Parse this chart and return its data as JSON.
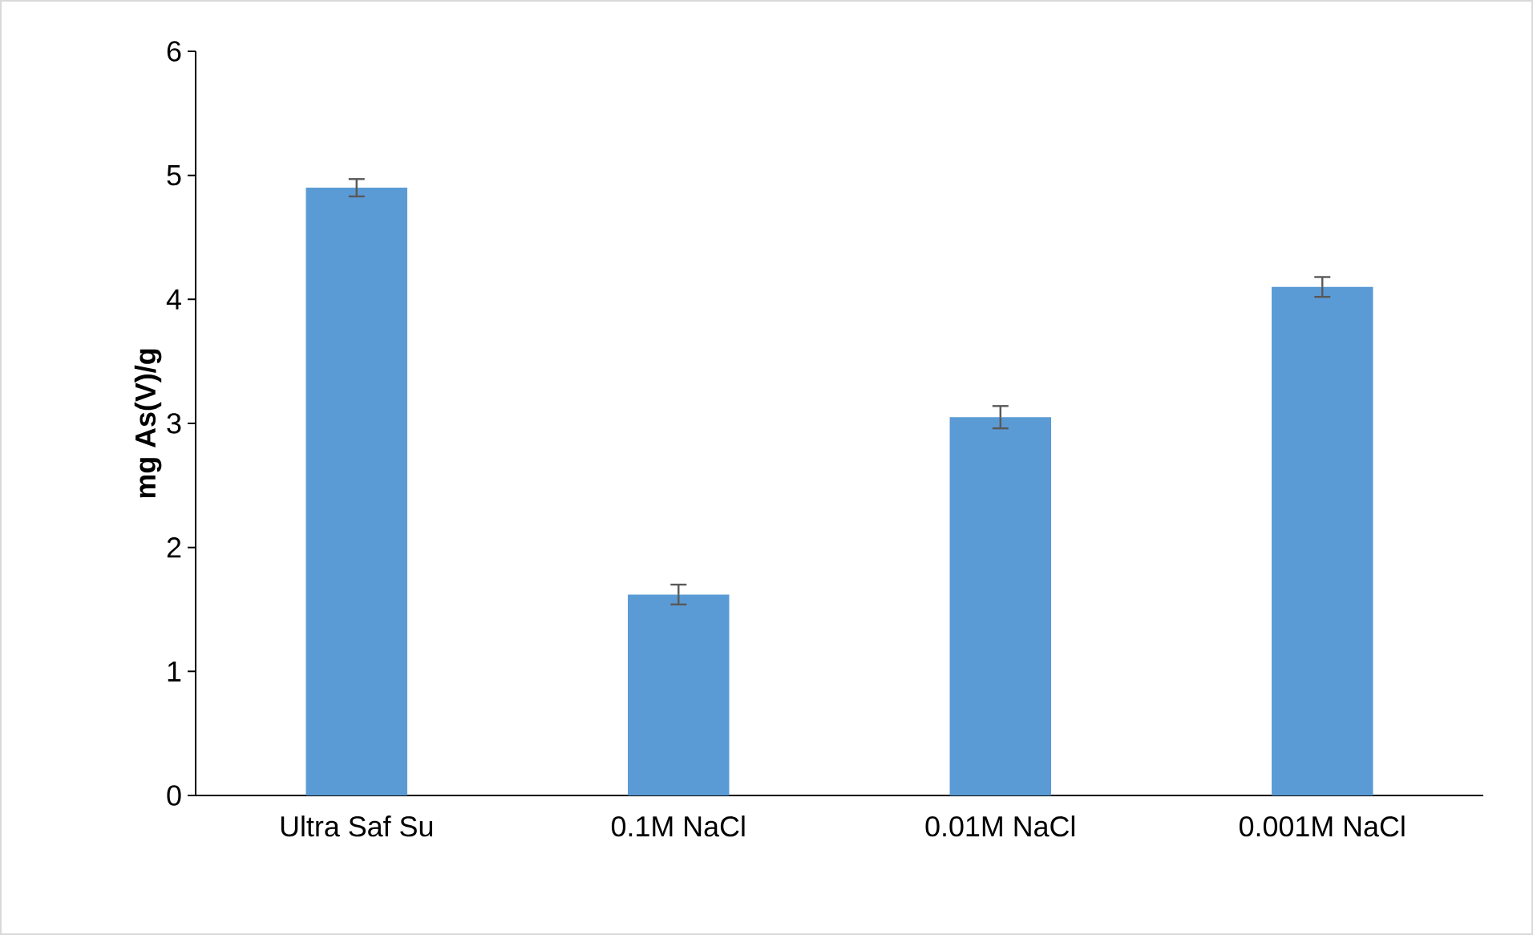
{
  "chart_data": {
    "type": "bar",
    "ylabel": "mg As(V)/g",
    "categories": [
      "Ultra Saf Su",
      "0.1M NaCl",
      "0.01M NaCl",
      "0.001M NaCl"
    ],
    "values": [
      4.9,
      1.62,
      3.05,
      4.1
    ],
    "errors": [
      0.07,
      0.08,
      0.09,
      0.08
    ],
    "color": "#5b9bd5",
    "ylim": [
      0,
      6
    ],
    "yticks": [
      0,
      1,
      2,
      3,
      4,
      5,
      6
    ],
    "grid": false
  }
}
